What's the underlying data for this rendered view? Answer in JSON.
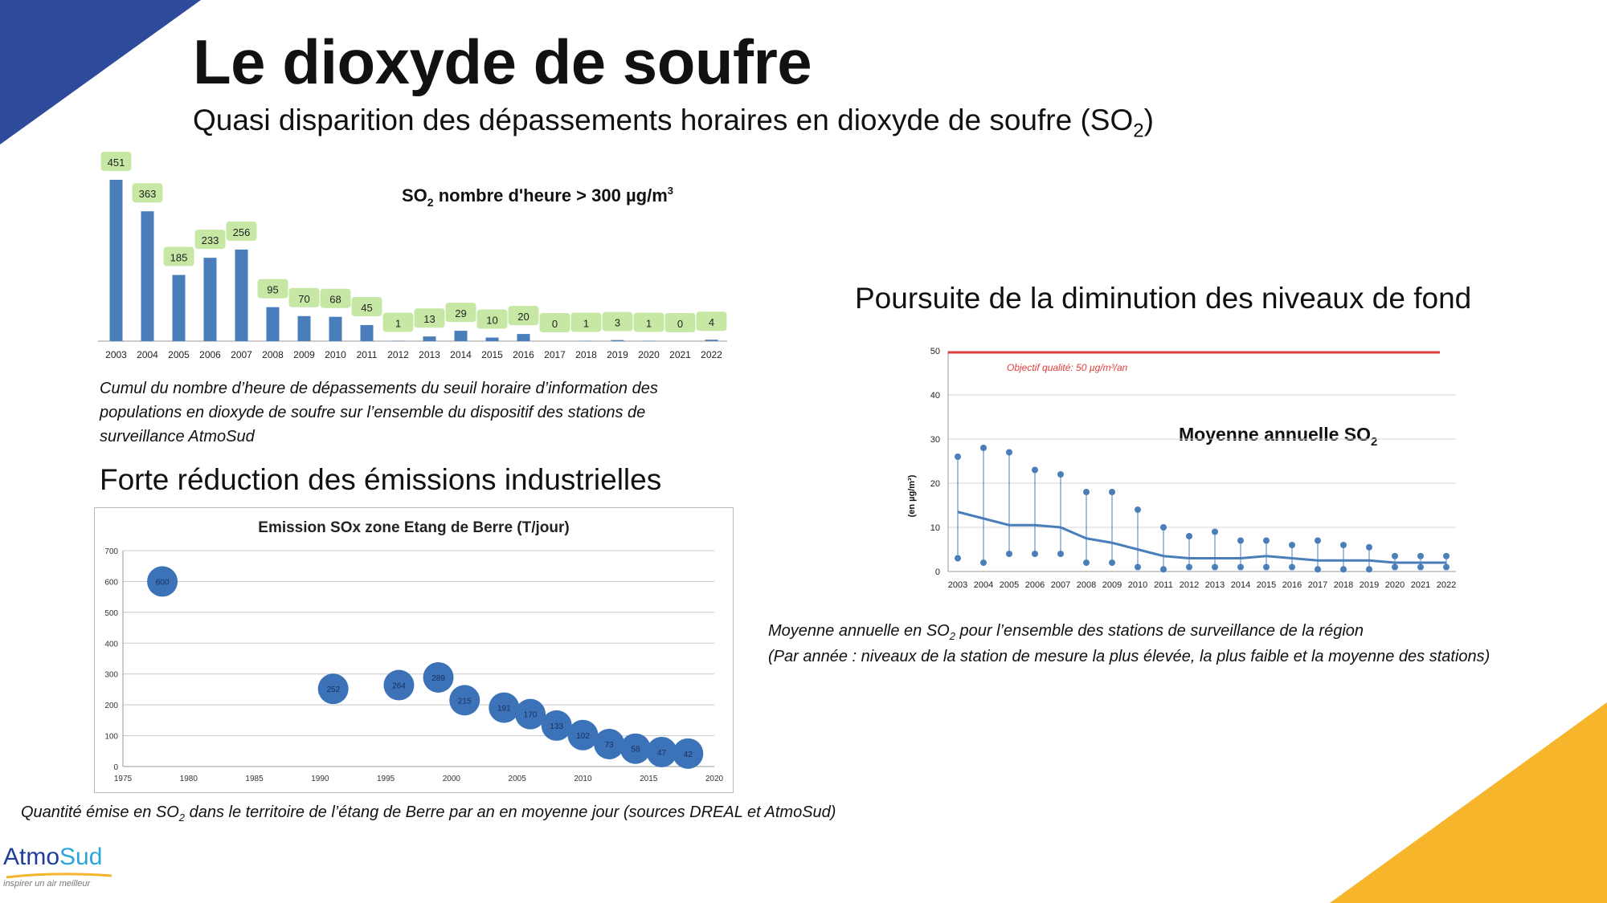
{
  "slide": {
    "title": "Le dioxyde de soufre",
    "subtitle": "Quasi disparition des dépassements horaires en dioxyde de soufre (SO",
    "subtitle_sub": "2",
    "subtitle_end": ")"
  },
  "section_right_heading": "Poursuite de la diminution des niveaux de fond",
  "section_bottom_heading": "Forte réduction des émissions industrielles",
  "captions": {
    "hours": "Cumul du nombre d’heure de dépassements du seuil horaire d’information des populations en dioxyde de soufre sur l’ensemble du dispositif des stations de surveillance AtmoSud",
    "hours_lines": [
      "Cumul du nombre d’heure de dépassements du seuil horaire d’information des",
      "populations en dioxyde de soufre sur l’ensemble du dispositif des stations de",
      "surveillance AtmoSud"
    ],
    "annual_line1_a": "Moyenne annuelle en SO",
    "annual_line1_sub": "2",
    "annual_line1_b": " pour l’ensemble des stations de surveillance de la région",
    "annual_line2": "(Par année : niveaux de la station de mesure la plus élevée, la plus faible et la moyenne des stations)",
    "emission_a": "Quantité émise en SO",
    "emission_sub": "2",
    "emission_b": " dans le territoire de l’étang de Berre par an en moyenne jour (sources DREAL et AtmoSud)"
  },
  "logo": {
    "name_a": "Atmo",
    "name_b": "Sud",
    "tagline": "inspirer un air meilleur"
  },
  "colors": {
    "accent_blue": "#2e4a9a",
    "accent_yellow": "#f6b52a",
    "bar_blue": "#4a7ebb",
    "label_green": "#c6e8a4",
    "bubble_blue": "#3b72b8",
    "objective_red": "#e03c3c"
  },
  "chart_data": [
    {
      "type": "bar",
      "title_a": "SO",
      "title_sub": "2",
      "title_b": " nombre d'heure > 300 µg/m",
      "title_sup": "3",
      "categories": [
        "2003",
        "2004",
        "2005",
        "2006",
        "2007",
        "2008",
        "2009",
        "2010",
        "2011",
        "2012",
        "2013",
        "2014",
        "2015",
        "2016",
        "2017",
        "2018",
        "2019",
        "2020",
        "2021",
        "2022"
      ],
      "values": [
        451,
        363,
        185,
        233,
        256,
        95,
        70,
        68,
        45,
        1,
        13,
        29,
        10,
        20,
        0,
        1,
        3,
        1,
        0,
        4
      ],
      "ylim": [
        0,
        460
      ]
    },
    {
      "type": "line",
      "title_a": "Moyenne annuelle SO",
      "title_sub": "2",
      "ylabel": "(en µg/m³)",
      "yticks": [
        "0",
        "10",
        "20",
        "30",
        "40",
        "50"
      ],
      "ylim": [
        0,
        50
      ],
      "objective_label": "Objectif qualité: 50 µg/m³/an",
      "objective_value": 50,
      "x": [
        "2003",
        "2004",
        "2005",
        "2006",
        "2007",
        "2008",
        "2009",
        "2010",
        "2011",
        "2012",
        "2013",
        "2014",
        "2015",
        "2016",
        "2017",
        "2018",
        "2019",
        "2020",
        "2021",
        "2022"
      ],
      "series": [
        {
          "values_max": [
            26,
            28,
            27,
            23,
            22,
            18,
            18,
            14,
            10,
            8,
            9,
            7,
            7,
            6,
            7,
            6,
            5.5,
            3.5,
            3.5,
            3.5
          ]
        },
        {
          "values_min": [
            3,
            2,
            4,
            4,
            4,
            2,
            2,
            1,
            0.5,
            1,
            1,
            1,
            1,
            1,
            0.5,
            0.5,
            0.5,
            1,
            1,
            1
          ]
        },
        {
          "values_mean": [
            13.5,
            12,
            10.5,
            10.5,
            10,
            7.5,
            6.5,
            5,
            3.5,
            3,
            3,
            3,
            3.5,
            3,
            2.5,
            2.5,
            2.5,
            2,
            2,
            2
          ]
        }
      ]
    },
    {
      "type": "scatter",
      "title": "Emission SOx zone Etang de Berre (T/jour)",
      "xticks": [
        "1975",
        "1980",
        "1985",
        "1990",
        "1995",
        "2000",
        "2005",
        "2010",
        "2015",
        "2020"
      ],
      "yticks": [
        "0",
        "100",
        "200",
        "300",
        "400",
        "500",
        "600",
        "700"
      ],
      "xlim": [
        1975,
        2020
      ],
      "ylim": [
        0,
        700
      ],
      "points": [
        {
          "x": 1978,
          "y": 600,
          "label": "600"
        },
        {
          "x": 1991,
          "y": 252,
          "label": "252"
        },
        {
          "x": 1996,
          "y": 264,
          "label": "264"
        },
        {
          "x": 1999,
          "y": 289,
          "label": "289"
        },
        {
          "x": 2001,
          "y": 215,
          "label": "215"
        },
        {
          "x": 2004,
          "y": 191,
          "label": "191"
        },
        {
          "x": 2006,
          "y": 170,
          "label": "170"
        },
        {
          "x": 2008,
          "y": 133,
          "label": "133"
        },
        {
          "x": 2010,
          "y": 102,
          "label": "102"
        },
        {
          "x": 2012,
          "y": 73,
          "label": "73"
        },
        {
          "x": 2014,
          "y": 58,
          "label": "58"
        },
        {
          "x": 2016,
          "y": 47,
          "label": "47"
        },
        {
          "x": 2018,
          "y": 42,
          "label": "42"
        }
      ]
    }
  ]
}
